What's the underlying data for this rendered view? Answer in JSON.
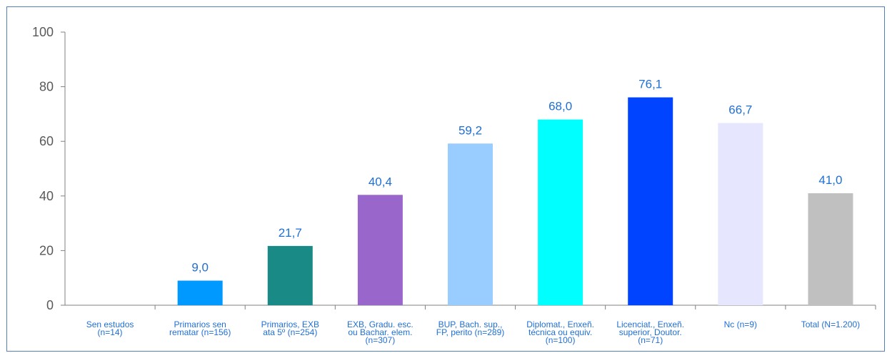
{
  "chart_data": {
    "type": "bar",
    "categories": [
      [
        "Sen estudos",
        "(n=14)"
      ],
      [
        "Primarios sen",
        "rematar (n=156)"
      ],
      [
        "Primarios, EXB",
        "ata 5º (n=254)"
      ],
      [
        "EXB, Gradu. esc.",
        "ou Bachar. elem.",
        "(n=307)"
      ],
      [
        "BUP, Bach. sup.,",
        "FP, perito (n=289)"
      ],
      [
        "Diplomat., Enxeñ.",
        "técnica ou equiv.",
        "(n=100)"
      ],
      [
        "Licenciat., Enxeñ.",
        "superior, Doutor.",
        "(n=71)"
      ],
      [
        "Nc (n=9)"
      ],
      [
        "Total (N=1.200)"
      ]
    ],
    "values": [
      0,
      9.0,
      21.7,
      40.4,
      59.2,
      68.0,
      76.1,
      66.7,
      41.0
    ],
    "value_labels": [
      "",
      "9,0",
      "21,7",
      "40,4",
      "59,2",
      "68,0",
      "76,1",
      "66,7",
      "41,0"
    ],
    "colors": [
      "#cccccc",
      "#0099ff",
      "#1a8a87",
      "#9966cc",
      "#99ccff",
      "#00ffff",
      "#0044ff",
      "#e6e6ff",
      "#c0c0c0"
    ],
    "yticks": [
      "0",
      "20",
      "40",
      "60",
      "80",
      "100"
    ],
    "ylim": [
      0,
      100
    ],
    "grid": false,
    "legend": "none"
  }
}
